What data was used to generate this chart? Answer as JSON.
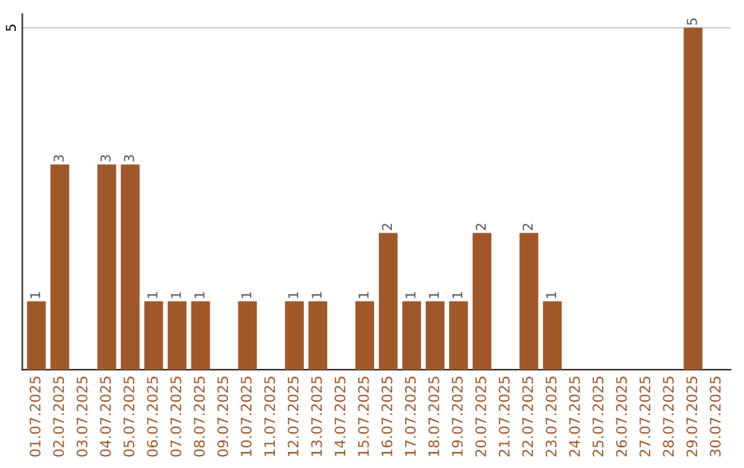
{
  "chart_data": {
    "type": "bar",
    "categories": [
      "01.07.2025",
      "02.07.2025",
      "03.07.2025",
      "04.07.2025",
      "05.07.2025",
      "06.07.2025",
      "07.07.2025",
      "08.07.2025",
      "09.07.2025",
      "10.07.2025",
      "11.07.2025",
      "12.07.2025",
      "13.07.2025",
      "14.07.2025",
      "15.07.2025",
      "16.07.2025",
      "17.07.2025",
      "18.07.2025",
      "19.07.2025",
      "20.07.2025",
      "21.07.2025",
      "22.07.2025",
      "23.07.2025",
      "24.07.2025",
      "25.07.2025",
      "26.07.2025",
      "27.07.2025",
      "28.07.2025",
      "29.07.2025",
      "30.07.2025"
    ],
    "values": [
      1,
      3,
      0,
      3,
      3,
      1,
      1,
      1,
      0,
      1,
      0,
      1,
      1,
      0,
      1,
      2,
      1,
      1,
      1,
      2,
      0,
      2,
      1,
      0,
      0,
      0,
      0,
      0,
      5,
      0
    ],
    "value_labels": [
      "1",
      "3",
      null,
      "3",
      "3",
      "1",
      "1",
      "1",
      null,
      "1",
      null,
      "1",
      "1",
      null,
      "1",
      "2",
      "1",
      "1",
      "1",
      "2",
      null,
      "2",
      "1",
      null,
      null,
      null,
      null,
      null,
      "5",
      null
    ],
    "color": "#a0582a",
    "ylim": [
      0,
      5.2
    ],
    "yticks": [
      5
    ],
    "grid": "y"
  }
}
